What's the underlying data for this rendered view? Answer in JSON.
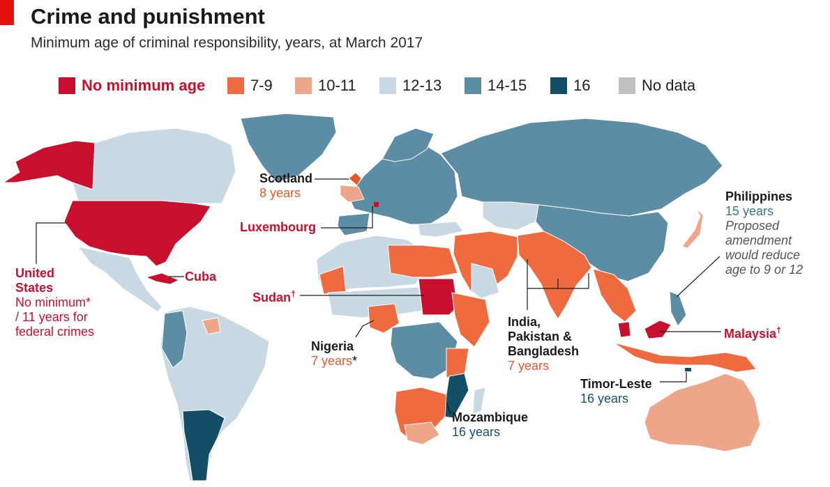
{
  "header": {
    "title": "Crime and punishment",
    "subtitle": "Minimum age of criminal responsibility, years, at March 2017"
  },
  "legend": [
    {
      "label": "No minimum age",
      "color": "#c8102e"
    },
    {
      "label": "7-9",
      "color": "#ef6a3f"
    },
    {
      "label": "10-11",
      "color": "#eea58a"
    },
    {
      "label": "12-13",
      "color": "#c9d9e4"
    },
    {
      "label": "14-15",
      "color": "#5d8ca5"
    },
    {
      "label": "16",
      "color": "#134e66"
    },
    {
      "label": "No data",
      "color": "#c0c0c0"
    }
  ],
  "annotations": {
    "scotland": {
      "name": "Scotland",
      "value": "8 years"
    },
    "luxembourg": {
      "name": "Luxembourg"
    },
    "us": {
      "name_line1": "United",
      "name_line2": "States",
      "value_line1": "No minimum*",
      "value_line2": "/ 11 years for",
      "value_line3": "federal crimes"
    },
    "cuba": {
      "name": "Cuba"
    },
    "sudan": {
      "name": "Sudan",
      "mark": "†"
    },
    "nigeria": {
      "name": "Nigeria",
      "value": "7 years",
      "mark": "*"
    },
    "philippines": {
      "name": "Philippines",
      "value": "15 years",
      "note_line1": "Proposed",
      "note_line2": "amendment",
      "note_line3": "would reduce",
      "note_line4": "age to 9 or 12"
    },
    "south_asia": {
      "name_line1": "India,",
      "name_line2": "Pakistan &",
      "name_line3": "Bangladesh",
      "value": "7 years"
    },
    "malaysia": {
      "name": "Malaysia",
      "mark": "†"
    },
    "timor": {
      "name": "Timor-Leste",
      "value": "16 years"
    },
    "mozambique": {
      "name": "Mozambique",
      "value": "16 years"
    }
  }
}
